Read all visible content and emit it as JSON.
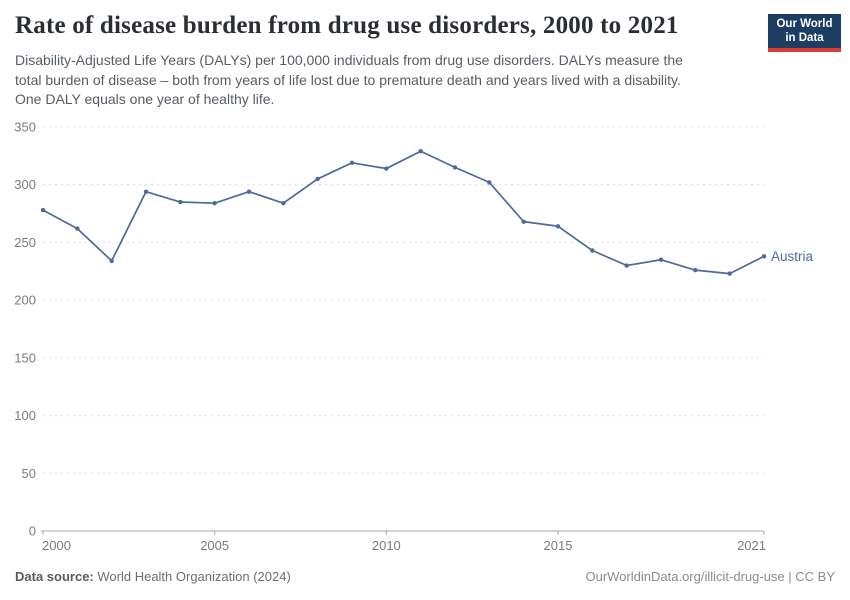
{
  "header": {
    "title": "Rate of disease burden from drug use disorders, 2000 to 2021",
    "subtitle_lines": [
      "Disability-Adjusted Life Years (DALYs) per 100,000 individuals from drug use disorders. DALYs measure the",
      "total burden of disease – both from years of life lost due to premature death and years lived with a disability.",
      "One DALY equals one year of healthy life."
    ],
    "logo": {
      "line1": "Our World",
      "line2": "in Data",
      "bg_color": "#1d3d63",
      "accent_color": "#d93a34"
    }
  },
  "chart_data": {
    "type": "line",
    "title": "Rate of disease burden from drug use disorders, 2000 to 2021",
    "xlabel": "",
    "ylabel": "DALYs per 100,000 individuals",
    "xlim": [
      2000,
      2021
    ],
    "ylim": [
      0,
      350
    ],
    "x_ticks": [
      2000,
      2005,
      2010,
      2015,
      2021
    ],
    "y_ticks": [
      0,
      50,
      100,
      150,
      200,
      250,
      300,
      350
    ],
    "grid": "horizontal-dashed",
    "legend_position": "end-of-line",
    "series": [
      {
        "name": "Austria",
        "color": "#4c6a9c",
        "x": [
          2000,
          2001,
          2002,
          2003,
          2004,
          2005,
          2006,
          2007,
          2008,
          2009,
          2010,
          2011,
          2012,
          2013,
          2014,
          2015,
          2016,
          2017,
          2018,
          2019,
          2020,
          2021
        ],
        "values": [
          278,
          262,
          234,
          294,
          285,
          284,
          294,
          284,
          305,
          319,
          314,
          329,
          315,
          302,
          268,
          264,
          243,
          230,
          235,
          226,
          223,
          238
        ]
      }
    ],
    "colors": {
      "gridline": "#dcdcdc",
      "axis": "#a7a9ac",
      "tick_label": "#7b7b7b"
    }
  },
  "footer": {
    "source_label": "Data source:",
    "source_value": "World Health Organization (2024)",
    "credit": "OurWorldinData.org/illicit-drug-use | CC BY"
  }
}
